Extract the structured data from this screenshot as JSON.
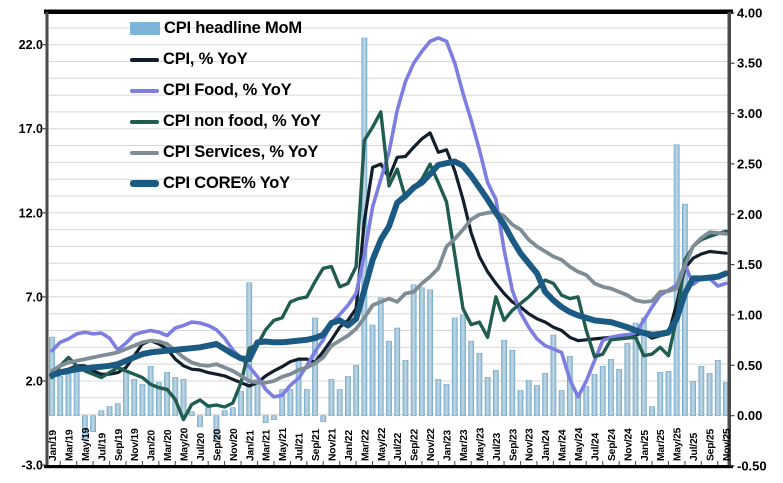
{
  "chart_data": {
    "type": "combo",
    "title": "",
    "x_start": "Jan/19",
    "x_end": "Nov/25",
    "n_months": 83,
    "grid": "horizontal, light gray, on",
    "legend_position": "top-left inside plot",
    "x_tick_labels": [
      "Jan/19",
      "Mar/19",
      "May/19",
      "Jul/19",
      "Sep/19",
      "Nov/19",
      "Jan/20",
      "Mar/20",
      "May/20",
      "Jul/20",
      "Sep/20",
      "Nov/20",
      "Jan/21",
      "Mar/21",
      "May/21",
      "Jul/21",
      "Sep/21",
      "Nov/21",
      "Jan/22",
      "Mar/22",
      "May/22",
      "Jul/22",
      "Sep/22",
      "Nov/22",
      "Jan/23",
      "Mar/23",
      "May/23",
      "Jul/23",
      "Sep/23",
      "Nov/23",
      "Jan/24",
      "Mar/24",
      "May/24",
      "Jul/24",
      "Sep/24",
      "Nov/24",
      "Jan/25",
      "Mar/25",
      "May/25",
      "Jul/25",
      "Sep/25",
      "Nov/25"
    ],
    "left_axis": {
      "min": -3.0,
      "max": 24.0,
      "tick_labels": [
        "22.0",
        "17.0",
        "12.0",
        "7.0",
        "2.0",
        "-3.0"
      ],
      "tick_values": [
        22,
        17,
        12,
        7,
        2,
        -3
      ]
    },
    "right_axis": {
      "min": -0.5,
      "max": 4.0,
      "tick_labels": [
        "4.00",
        "3.50",
        "3.00",
        "2.50",
        "2.00",
        "1.50",
        "1.00",
        "0.50",
        "0.00",
        "-0.50"
      ],
      "tick_values": [
        4.0,
        3.5,
        3.0,
        2.5,
        2.0,
        1.5,
        1.0,
        0.5,
        0.0,
        -0.5
      ]
    },
    "colors": {
      "gridline": "#D7D7D7",
      "border_top": "#000000",
      "border_side": "#4a4a4a",
      "border_bottom": "#000000",
      "axis_text": "#000000"
    },
    "series": [
      {
        "name": "CPI headline MoM",
        "type": "bar",
        "axis": "right",
        "color": "#7CB5D8",
        "values": [
          0.78,
          0.39,
          0.41,
          0.43,
          -0.24,
          -0.16,
          0.05,
          0.09,
          0.12,
          0.44,
          0.36,
          0.31,
          0.49,
          0.33,
          0.43,
          0.38,
          0.36,
          0.04,
          -0.11,
          0.09,
          -0.24,
          0.05,
          0.08,
          0.24,
          1.32,
          0.36,
          -0.07,
          -0.04,
          0.26,
          0.26,
          0.55,
          0.26,
          0.97,
          -0.06,
          0.36,
          0.26,
          0.39,
          0.5,
          3.75,
          0.9,
          1.17,
          0.74,
          0.87,
          0.55,
          1.3,
          1.27,
          1.25,
          0.36,
          0.31,
          0.97,
          1.0,
          0.74,
          0.62,
          0.38,
          0.45,
          0.75,
          0.65,
          0.25,
          0.35,
          0.3,
          0.42,
          0.8,
          0.25,
          0.59,
          0.21,
          0.29,
          0.41,
          0.49,
          0.56,
          0.46,
          0.72,
          0.92,
          0.97,
          0.09,
          0.43,
          0.44,
          2.69,
          2.1,
          0.34,
          0.49,
          0.42,
          0.55,
          0.33
        ]
      },
      {
        "name": "CPI, % YoY",
        "type": "line",
        "axis": "left",
        "color": "#111E2C",
        "width": 3.2,
        "values": [
          2.6,
          2.6,
          2.7,
          2.9,
          2.9,
          2.6,
          2.4,
          2.4,
          2.5,
          2.8,
          3.5,
          4.2,
          4.4,
          4.2,
          3.9,
          3.3,
          2.9,
          2.7,
          2.65,
          2.5,
          2.4,
          2.3,
          2.1,
          1.9,
          1.7,
          1.9,
          2.3,
          2.6,
          2.85,
          3.15,
          3.3,
          3.3,
          3.1,
          3.75,
          4.45,
          5.2,
          5.6,
          6.3,
          11.5,
          14.7,
          14.9,
          14.1,
          15.3,
          15.35,
          15.9,
          16.4,
          16.75,
          15.6,
          15.75,
          14.5,
          12.8,
          10.8,
          9.4,
          8.5,
          7.8,
          7.2,
          6.7,
          6.4,
          6.0,
          5.7,
          5.5,
          5.2,
          5.0,
          4.6,
          4.4,
          4.45,
          4.5,
          4.55,
          4.6,
          4.65,
          4.7,
          4.75,
          4.85,
          4.55,
          4.7,
          4.8,
          6.6,
          8.7,
          9.3,
          9.55,
          9.7,
          9.65,
          9.6
        ]
      },
      {
        "name": "CPI Food, % YoY",
        "type": "line",
        "axis": "left",
        "color": "#7D7EE2",
        "width": 3.6,
        "values": [
          3.8,
          4.3,
          4.5,
          4.8,
          4.9,
          4.8,
          4.85,
          4.55,
          3.85,
          4.25,
          4.75,
          4.9,
          5.0,
          4.9,
          4.7,
          5.15,
          5.3,
          5.5,
          5.45,
          5.3,
          5.05,
          4.55,
          3.85,
          3.35,
          2.85,
          2.25,
          1.5,
          1.05,
          1.15,
          1.75,
          2.15,
          2.9,
          3.75,
          4.45,
          5.45,
          5.95,
          6.5,
          7.2,
          9.5,
          12.35,
          14.0,
          15.6,
          18.1,
          19.8,
          20.9,
          21.6,
          22.2,
          22.4,
          22.2,
          20.9,
          19.1,
          17.5,
          15.75,
          13.8,
          12.8,
          9.8,
          7.4,
          6.05,
          5.2,
          4.5,
          4.1,
          3.9,
          3.7,
          2.1,
          1.05,
          2.0,
          3.2,
          4.4,
          4.6,
          4.7,
          4.75,
          4.85,
          5.6,
          6.4,
          7.1,
          7.4,
          7.7,
          8.95,
          7.75,
          8.1,
          8.1,
          7.65,
          7.8
        ]
      },
      {
        "name": "CPI non food, % YoY",
        "type": "line",
        "axis": "left",
        "color": "#205C50",
        "width": 3.4,
        "values": [
          2.2,
          2.9,
          3.4,
          2.9,
          2.6,
          2.4,
          2.2,
          2.5,
          2.8,
          2.6,
          2.4,
          2.2,
          1.8,
          1.6,
          1.5,
          0.9,
          -0.3,
          0.6,
          0.87,
          0.5,
          0.57,
          0.45,
          0.69,
          1.9,
          3.95,
          4.15,
          5.05,
          5.6,
          5.75,
          6.7,
          6.9,
          7.0,
          7.9,
          8.7,
          8.8,
          7.6,
          7.8,
          8.8,
          16.3,
          17.1,
          18.0,
          13.6,
          14.6,
          12.9,
          13.5,
          14.0,
          14.9,
          13.8,
          12.65,
          9.5,
          6.3,
          5.35,
          5.5,
          4.6,
          7.0,
          5.6,
          6.2,
          6.6,
          7.0,
          7.5,
          8.0,
          7.8,
          7.1,
          6.9,
          7.0,
          5.0,
          3.45,
          3.6,
          4.45,
          4.5,
          4.55,
          4.6,
          3.5,
          3.6,
          4.0,
          3.5,
          5.75,
          9.2,
          10.0,
          10.4,
          10.6,
          10.75,
          10.9
        ]
      },
      {
        "name": "CPI Services, % YoY",
        "type": "line",
        "axis": "left",
        "color": "#7E8D96",
        "width": 3.8,
        "values": [
          2.6,
          2.9,
          3.1,
          3.2,
          3.3,
          3.4,
          3.5,
          3.6,
          3.7,
          3.9,
          4.1,
          4.3,
          4.4,
          4.35,
          4.2,
          3.8,
          3.4,
          3.1,
          2.95,
          2.9,
          3.0,
          2.8,
          2.6,
          2.3,
          2.0,
          1.9,
          1.9,
          2.0,
          2.25,
          2.4,
          2.65,
          2.8,
          3.05,
          3.4,
          4.1,
          4.4,
          4.7,
          5.1,
          5.75,
          6.5,
          6.7,
          6.9,
          6.7,
          7.2,
          7.3,
          7.8,
          8.2,
          8.7,
          10.0,
          10.45,
          11.0,
          11.6,
          11.9,
          12.0,
          12.05,
          11.8,
          11.3,
          11.0,
          10.4,
          10.0,
          9.7,
          9.4,
          9.2,
          8.8,
          8.5,
          8.3,
          7.8,
          7.6,
          7.5,
          7.3,
          7.1,
          6.8,
          6.7,
          6.75,
          7.3,
          7.35,
          7.5,
          8.9,
          10.0,
          10.5,
          10.85,
          10.8,
          10.75
        ]
      },
      {
        "name": "CPI CORE% YoY",
        "type": "line",
        "axis": "left",
        "color": "#1B5A82",
        "width": 6.0,
        "values": [
          2.35,
          2.5,
          2.6,
          2.7,
          2.75,
          2.8,
          2.85,
          2.9,
          3.0,
          3.2,
          3.4,
          3.6,
          3.7,
          3.75,
          3.8,
          3.85,
          3.9,
          3.95,
          4.0,
          4.1,
          4.2,
          3.9,
          3.6,
          3.35,
          3.3,
          4.3,
          4.35,
          4.3,
          4.3,
          4.35,
          4.4,
          4.45,
          4.55,
          4.75,
          5.45,
          5.6,
          5.3,
          5.7,
          7.4,
          9.2,
          10.4,
          11.2,
          12.6,
          13.0,
          13.5,
          13.8,
          14.3,
          14.85,
          14.95,
          15.05,
          14.8,
          14.2,
          13.5,
          12.8,
          12.0,
          11.3,
          10.4,
          9.6,
          9.0,
          8.4,
          7.3,
          6.8,
          6.4,
          6.1,
          5.9,
          5.75,
          5.6,
          5.55,
          5.5,
          5.35,
          5.2,
          5.0,
          4.85,
          4.75,
          4.8,
          4.9,
          5.7,
          7.2,
          8.1,
          8.1,
          8.15,
          8.2,
          8.4
        ]
      }
    ]
  }
}
